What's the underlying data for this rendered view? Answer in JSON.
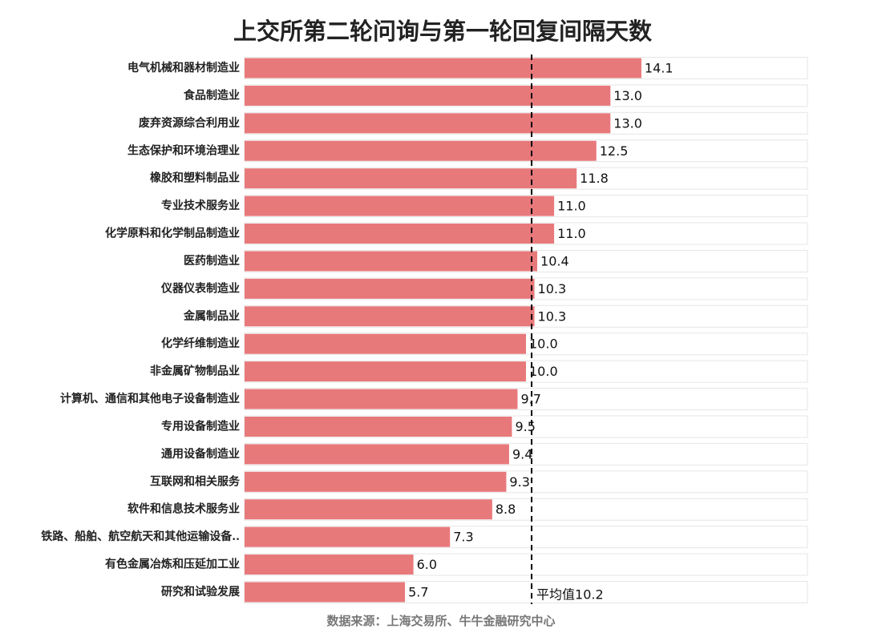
{
  "chart_data": {
    "type": "bar",
    "orientation": "horizontal",
    "title": "上交所第二轮问询与第一轮回复间隔天数",
    "categories": [
      "电气机械和器材制造业",
      "食品制造业",
      "废弃资源综合利用业",
      "生态保护和环境治理业",
      "橡胶和塑料制品业",
      "专业技术服务业",
      "化学原料和化学制品制造业",
      "医药制造业",
      "仪器仪表制造业",
      "金属制品业",
      "化学纤维制造业",
      "非金属矿物制品业",
      "计算机、通信和其他电子设备制造业",
      "专用设备制造业",
      "通用设备制造业",
      "互联网和相关服务",
      "软件和信息技术服务业",
      "铁路、船舶、航空航天和其他运输设备..",
      "有色金属冶炼和压延加工业",
      "研究和试验发展"
    ],
    "values": [
      14.1,
      13.0,
      13.0,
      12.5,
      11.8,
      11.0,
      11.0,
      10.4,
      10.3,
      10.3,
      10.0,
      10.0,
      9.7,
      9.5,
      9.4,
      9.3,
      8.8,
      7.3,
      6.0,
      5.7
    ],
    "value_labels": [
      "14.1",
      "13.0",
      "13.0",
      "12.5",
      "11.8",
      "11.0",
      "11.0",
      "10.4",
      "10.3",
      "10.3",
      "10.0",
      "10.0",
      "9.7",
      "9.5",
      "9.4",
      "9.3",
      "8.8",
      "7.3",
      "6.0",
      "5.7"
    ],
    "color": "#e8797b",
    "xlim": [
      0,
      20
    ],
    "reference_line": {
      "value": 10.2,
      "label": "平均值10.2"
    },
    "source": "数据来源：上海交易所、牛牛金融研究中心"
  }
}
